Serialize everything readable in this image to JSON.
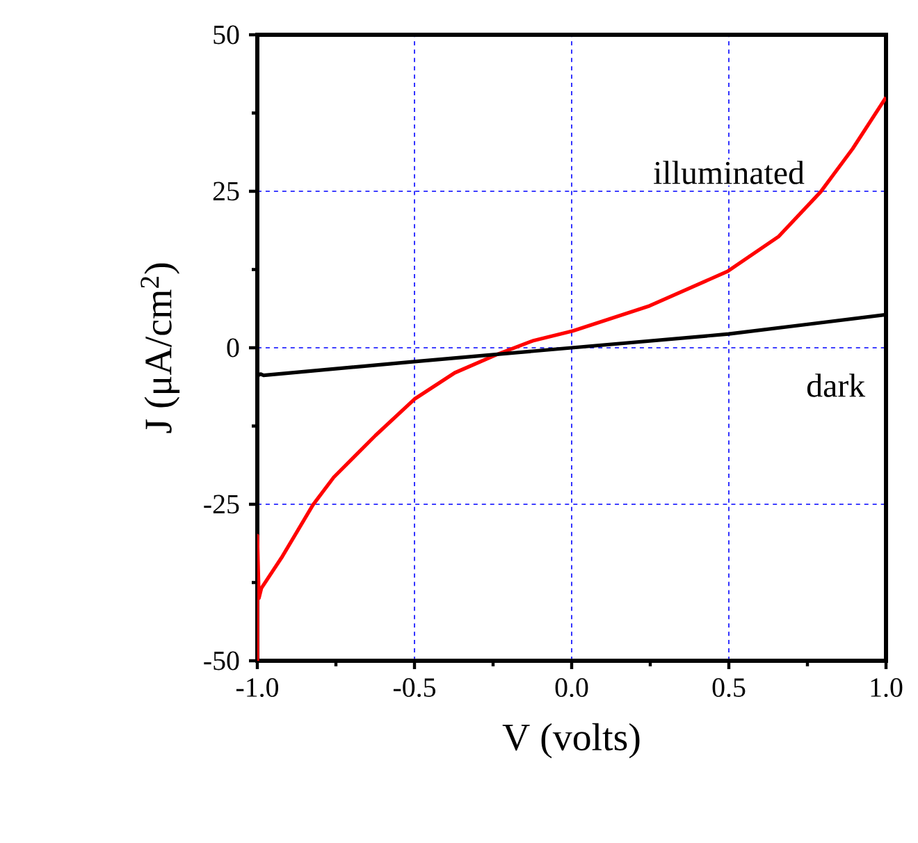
{
  "chart_data": {
    "type": "line",
    "xlabel": "V (volts)",
    "ylabel": "J (μA/cm$^{2}$)",
    "xlim": [
      -1,
      1
    ],
    "ylim": [
      -50,
      50
    ],
    "xticks": [
      {
        "value": -1,
        "label": "-1.0"
      },
      {
        "value": -0.5,
        "label": "-0.5"
      },
      {
        "value": 0,
        "label": "0.0"
      },
      {
        "value": 0.5,
        "label": "0.5"
      },
      {
        "value": 1,
        "label": "1.0"
      }
    ],
    "yticks": [
      -50,
      -25,
      0,
      25,
      50
    ],
    "grid": true,
    "legend": false,
    "marker": "none",
    "line_style": "solid",
    "series": [
      {
        "name": "illuminated",
        "color": "#ff0000",
        "x": [
          -1,
          -1,
          -0.995,
          -0.987,
          -0.92,
          -0.823,
          -0.757,
          -0.624,
          -0.5,
          -0.372,
          -0.239,
          -0.124,
          0.004,
          0.248,
          0.496,
          0.659,
          0.792,
          0.894,
          1.0
        ],
        "values": [
          -50,
          -30,
          -40,
          -38.4,
          -33.3,
          -25.1,
          -20.7,
          -14,
          -8.2,
          -4,
          -1.1,
          1.1,
          2.7,
          6.7,
          12.2,
          17.8,
          24.9,
          31.8,
          40
        ]
      },
      {
        "name": "dark",
        "color": "#000000",
        "x": [
          -1,
          -1,
          -0.99,
          -0.98,
          -0.5,
          0.0,
          0.5,
          0.76,
          1.0
        ],
        "values": [
          5,
          -4.5,
          -4.2,
          -4.4,
          -2.2,
          0,
          2.2,
          3.8,
          5.3
        ]
      }
    ]
  }
}
